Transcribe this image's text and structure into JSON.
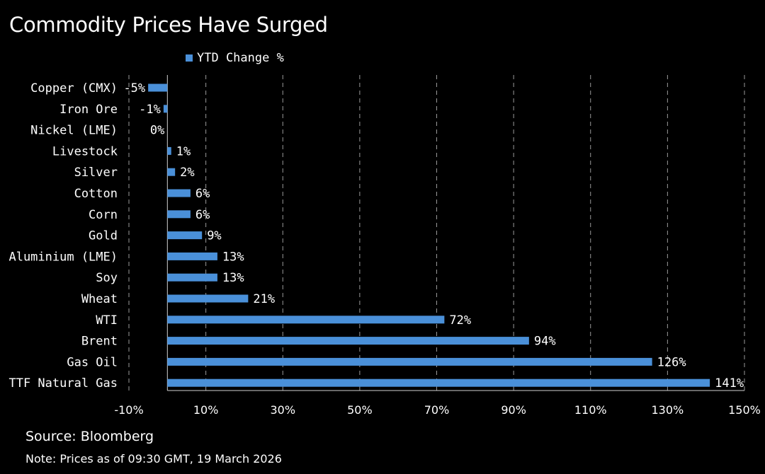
{
  "chart_data": {
    "type": "bar",
    "orientation": "horizontal",
    "title": "Commodity Prices Have Surged",
    "series": [
      {
        "name": "YTD Change %",
        "color": "#4a90d9",
        "values": [
          -5,
          -1,
          0,
          1,
          2,
          6,
          6,
          9,
          13,
          13,
          21,
          72,
          94,
          126,
          141
        ]
      }
    ],
    "categories": [
      "Copper (CMX)",
      "Iron Ore",
      "Nickel (LME)",
      "Livestock",
      "Silver",
      "Cotton",
      "Corn",
      "Gold",
      "Aluminium (LME)",
      "Soy",
      "Wheat",
      "WTI",
      "Brent",
      "Gas Oil",
      "TTF Natural Gas"
    ],
    "data_labels": [
      "-5%",
      "-1%",
      "0%",
      "1%",
      "2%",
      "6%",
      "6%",
      "9%",
      "13%",
      "13%",
      "21%",
      "72%",
      "94%",
      "126%",
      "141%"
    ],
    "xlim": [
      -10,
      150
    ],
    "xticks": [
      -10,
      10,
      30,
      50,
      70,
      90,
      110,
      130,
      150
    ],
    "xtick_labels": [
      "-10%",
      "10%",
      "30%",
      "50%",
      "70%",
      "90%",
      "110%",
      "130%",
      "150%"
    ],
    "grid": "vertical dashed",
    "legend_position": "top"
  },
  "footer": {
    "source": "Source: Bloomberg",
    "note": "Note: Prices as of 09:30 GMT, 19 March 2026"
  }
}
